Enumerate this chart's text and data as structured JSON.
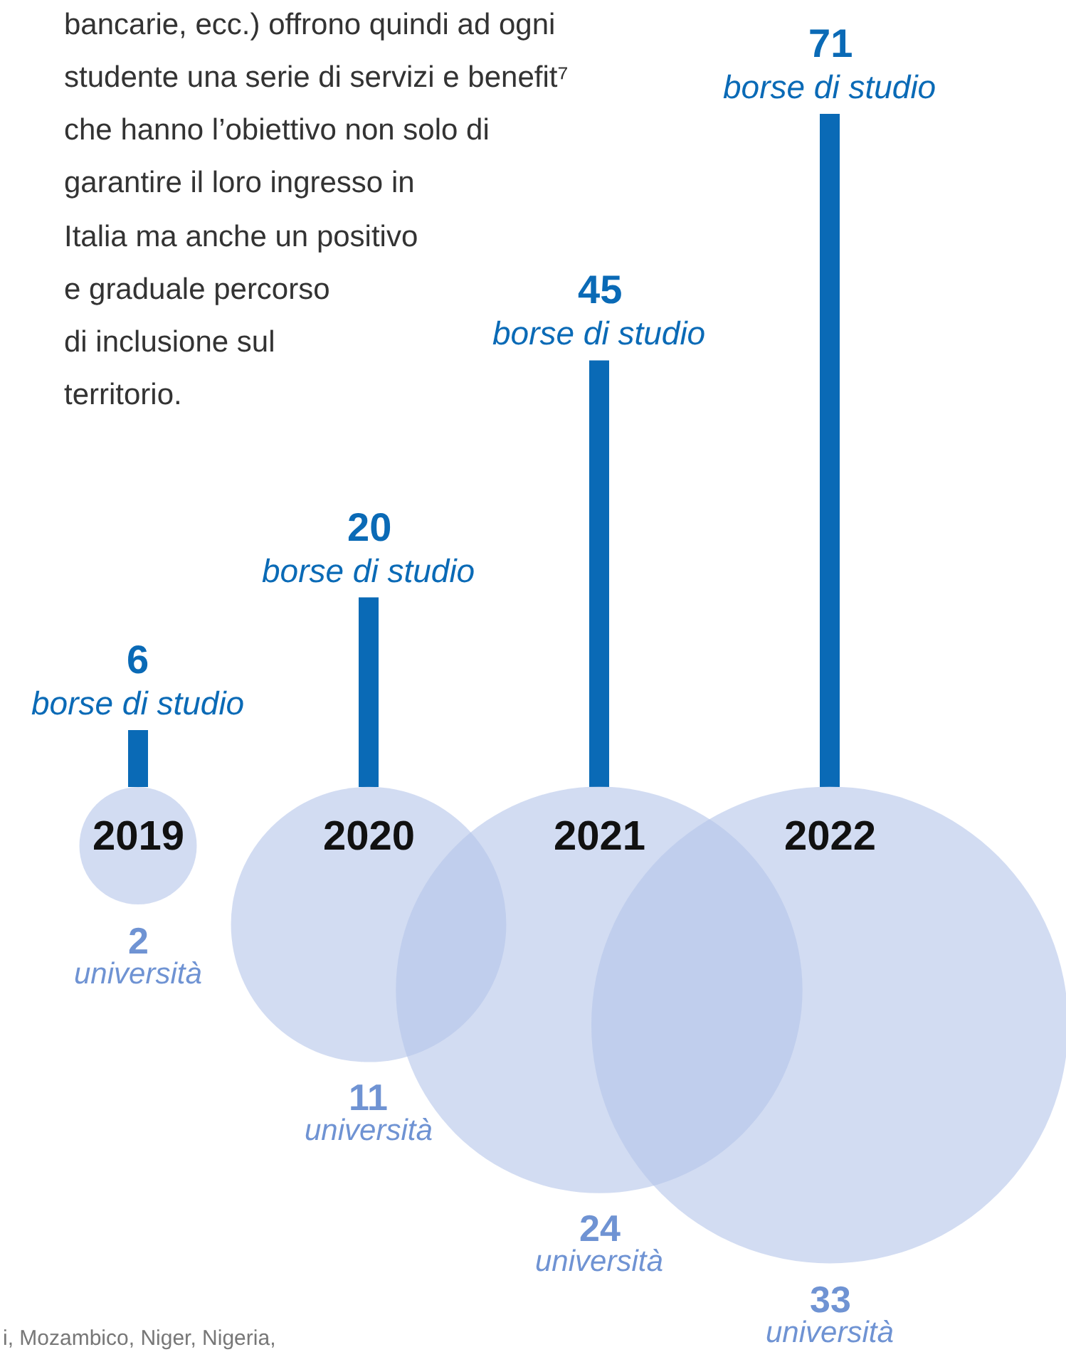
{
  "chart_data": {
    "type": "bar",
    "categories": [
      "2019",
      "2020",
      "2021",
      "2022"
    ],
    "series": [
      {
        "type": "bar",
        "name": "borse di studio",
        "color": "#0a6ab6",
        "values": [
          6,
          20,
          45,
          71
        ],
        "value_labels": [
          "6",
          "20",
          "45",
          "71"
        ]
      },
      {
        "type": "bubble",
        "name": "università",
        "color": "#b4c5ea",
        "values": [
          -6.2,
          -14.5,
          -21.4,
          -25.1
        ],
        "sizes": [
          2,
          11,
          24,
          33
        ],
        "value_labels": [
          "2",
          "11",
          "24",
          "33"
        ]
      }
    ],
    "annotations": [
      "bancarie, ecc.) offrono quindi ad ogni\nstudente una serie di servizi e benefit⁷\nche hanno l’obiettivo non solo di\ngarantire il loro ingresso in\nItalia ma anche un positivo\ne graduale percorso\ndi inclusione sul\nterritorio.",
      "i, Mozambico, Niger, Nigeria,"
    ]
  }
}
